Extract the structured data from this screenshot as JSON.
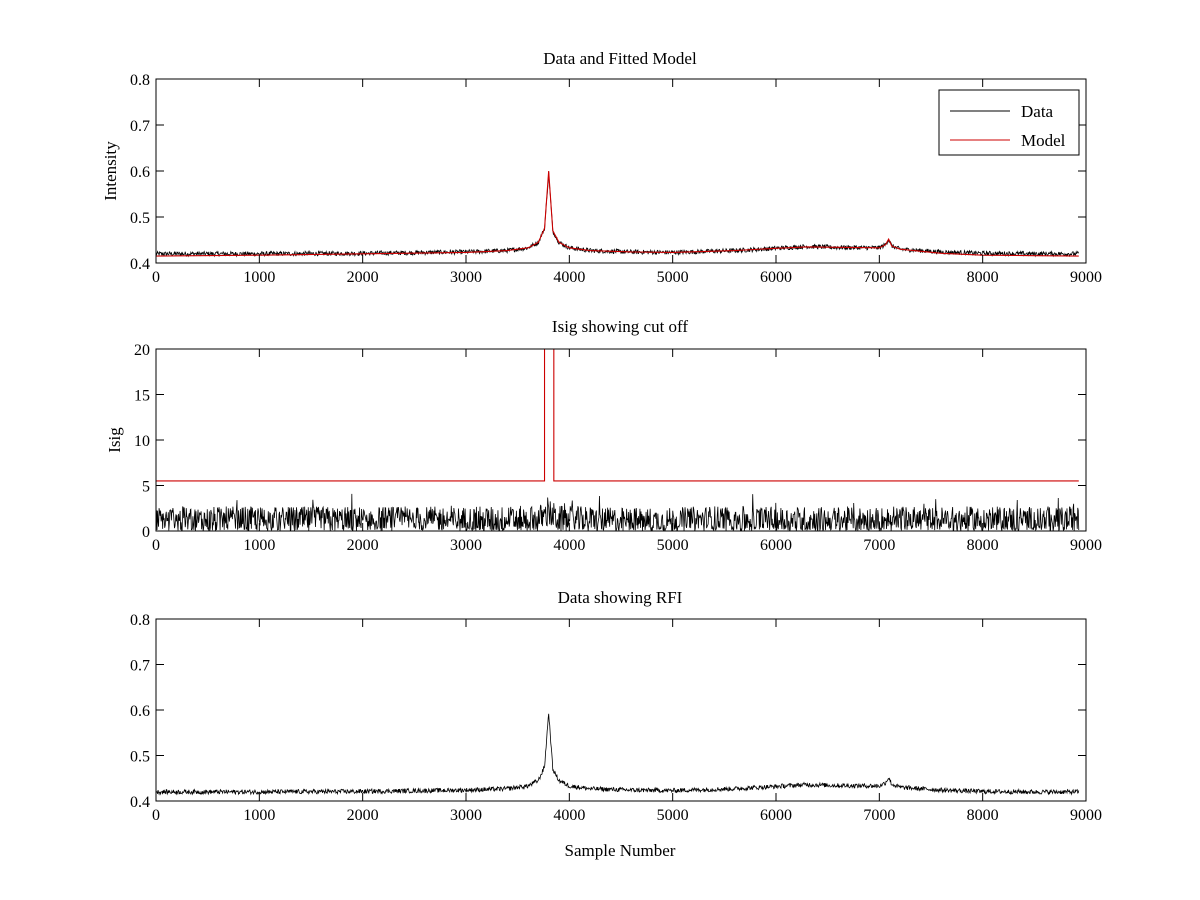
{
  "figure": {
    "background": "#ffffff",
    "colors": {
      "data": "#000000",
      "model": "#cc0000",
      "axes": "#000000"
    }
  },
  "chart_data": [
    {
      "type": "line",
      "title": "Data and Fitted Model",
      "xlabel": "",
      "ylabel": "Intensity",
      "xlim": [
        0,
        9000
      ],
      "ylim": [
        0.4,
        0.8
      ],
      "xticks": [
        "0",
        "1000",
        "2000",
        "3000",
        "4000",
        "5000",
        "6000",
        "7000",
        "8000",
        "9000"
      ],
      "yticks": [
        "0.4",
        "0.5",
        "0.6",
        "0.7",
        "0.8"
      ],
      "grid": false,
      "legend": {
        "placement": "top-right",
        "entries": [
          "Data",
          "Model"
        ]
      },
      "series": [
        {
          "name": "Data",
          "color": "#000000",
          "noise": 0.005,
          "x": [
            0,
            1000,
            2000,
            3000,
            3400,
            3600,
            3700,
            3760,
            3800,
            3840,
            3900,
            4000,
            4200,
            4600,
            5000,
            5600,
            6000,
            6300,
            6600,
            7000,
            7060,
            7090,
            7120,
            7200,
            7600,
            8000,
            8500,
            8930
          ],
          "y": [
            0.42,
            0.42,
            0.421,
            0.424,
            0.427,
            0.433,
            0.445,
            0.475,
            0.595,
            0.47,
            0.445,
            0.433,
            0.427,
            0.424,
            0.423,
            0.427,
            0.432,
            0.436,
            0.434,
            0.433,
            0.44,
            0.452,
            0.437,
            0.43,
            0.424,
            0.421,
            0.42,
            0.42
          ]
        },
        {
          "name": "Model",
          "color": "#cc0000",
          "noise": 0,
          "x": [
            0,
            1000,
            2000,
            3000,
            3400,
            3600,
            3700,
            3760,
            3800,
            3840,
            3900,
            4000,
            4200,
            4600,
            5000,
            5600,
            6000,
            6300,
            6600,
            7000,
            7060,
            7090,
            7120,
            7200,
            7600,
            8000,
            8500,
            8930
          ],
          "y": [
            0.415,
            0.417,
            0.42,
            0.423,
            0.427,
            0.433,
            0.445,
            0.475,
            0.6,
            0.47,
            0.445,
            0.433,
            0.427,
            0.424,
            0.423,
            0.427,
            0.432,
            0.435,
            0.434,
            0.433,
            0.44,
            0.452,
            0.437,
            0.43,
            0.421,
            0.417,
            0.416,
            0.415
          ]
        }
      ]
    },
    {
      "type": "line",
      "title": "Isig showing cut off",
      "xlabel": "",
      "ylabel": "Isig",
      "xlim": [
        0,
        9000
      ],
      "ylim": [
        0,
        20
      ],
      "xticks": [
        "0",
        "1000",
        "2000",
        "3000",
        "4000",
        "5000",
        "6000",
        "7000",
        "8000",
        "9000"
      ],
      "yticks": [
        "0",
        "5",
        "10",
        "15",
        "20"
      ],
      "grid": false,
      "series": [
        {
          "name": "",
          "color": "#000000",
          "noise": 1.4,
          "x": [
            0,
            1000,
            2000,
            3000,
            3700,
            3800,
            3900,
            4500,
            5000,
            5400,
            6000,
            7000,
            8000,
            8930
          ],
          "y": [
            1.0,
            1.0,
            1.0,
            1.0,
            1.1,
            1.8,
            1.1,
            0.9,
            0.9,
            1.1,
            1.0,
            1.0,
            1.0,
            1.0
          ]
        },
        {
          "name": "",
          "color": "#cc0000",
          "noise": 0,
          "x": [
            0,
            3760,
            3760,
            3850,
            3850,
            8930
          ],
          "y": [
            5.5,
            5.5,
            20,
            20,
            5.5,
            5.5
          ]
        }
      ]
    },
    {
      "type": "line",
      "title": "Data showing RFI",
      "xlabel": "Sample Number",
      "ylabel": "",
      "xlim": [
        0,
        9000
      ],
      "ylim": [
        0.4,
        0.8
      ],
      "xticks": [
        "0",
        "1000",
        "2000",
        "3000",
        "4000",
        "5000",
        "6000",
        "7000",
        "8000",
        "9000"
      ],
      "yticks": [
        "0.4",
        "0.5",
        "0.6",
        "0.7",
        "0.8"
      ],
      "grid": false,
      "series": [
        {
          "name": "",
          "color": "#000000",
          "noise": 0.005,
          "x": [
            0,
            1000,
            2000,
            3000,
            3400,
            3600,
            3700,
            3760,
            3800,
            3840,
            3900,
            4000,
            4200,
            4600,
            5000,
            5600,
            6000,
            6300,
            6600,
            7000,
            7060,
            7090,
            7120,
            7200,
            7600,
            8000,
            8500,
            8930
          ],
          "y": [
            0.42,
            0.42,
            0.421,
            0.424,
            0.427,
            0.433,
            0.445,
            0.475,
            0.595,
            0.47,
            0.445,
            0.433,
            0.427,
            0.424,
            0.423,
            0.427,
            0.432,
            0.436,
            0.434,
            0.433,
            0.44,
            0.452,
            0.437,
            0.43,
            0.424,
            0.421,
            0.42,
            0.42
          ]
        }
      ]
    }
  ]
}
